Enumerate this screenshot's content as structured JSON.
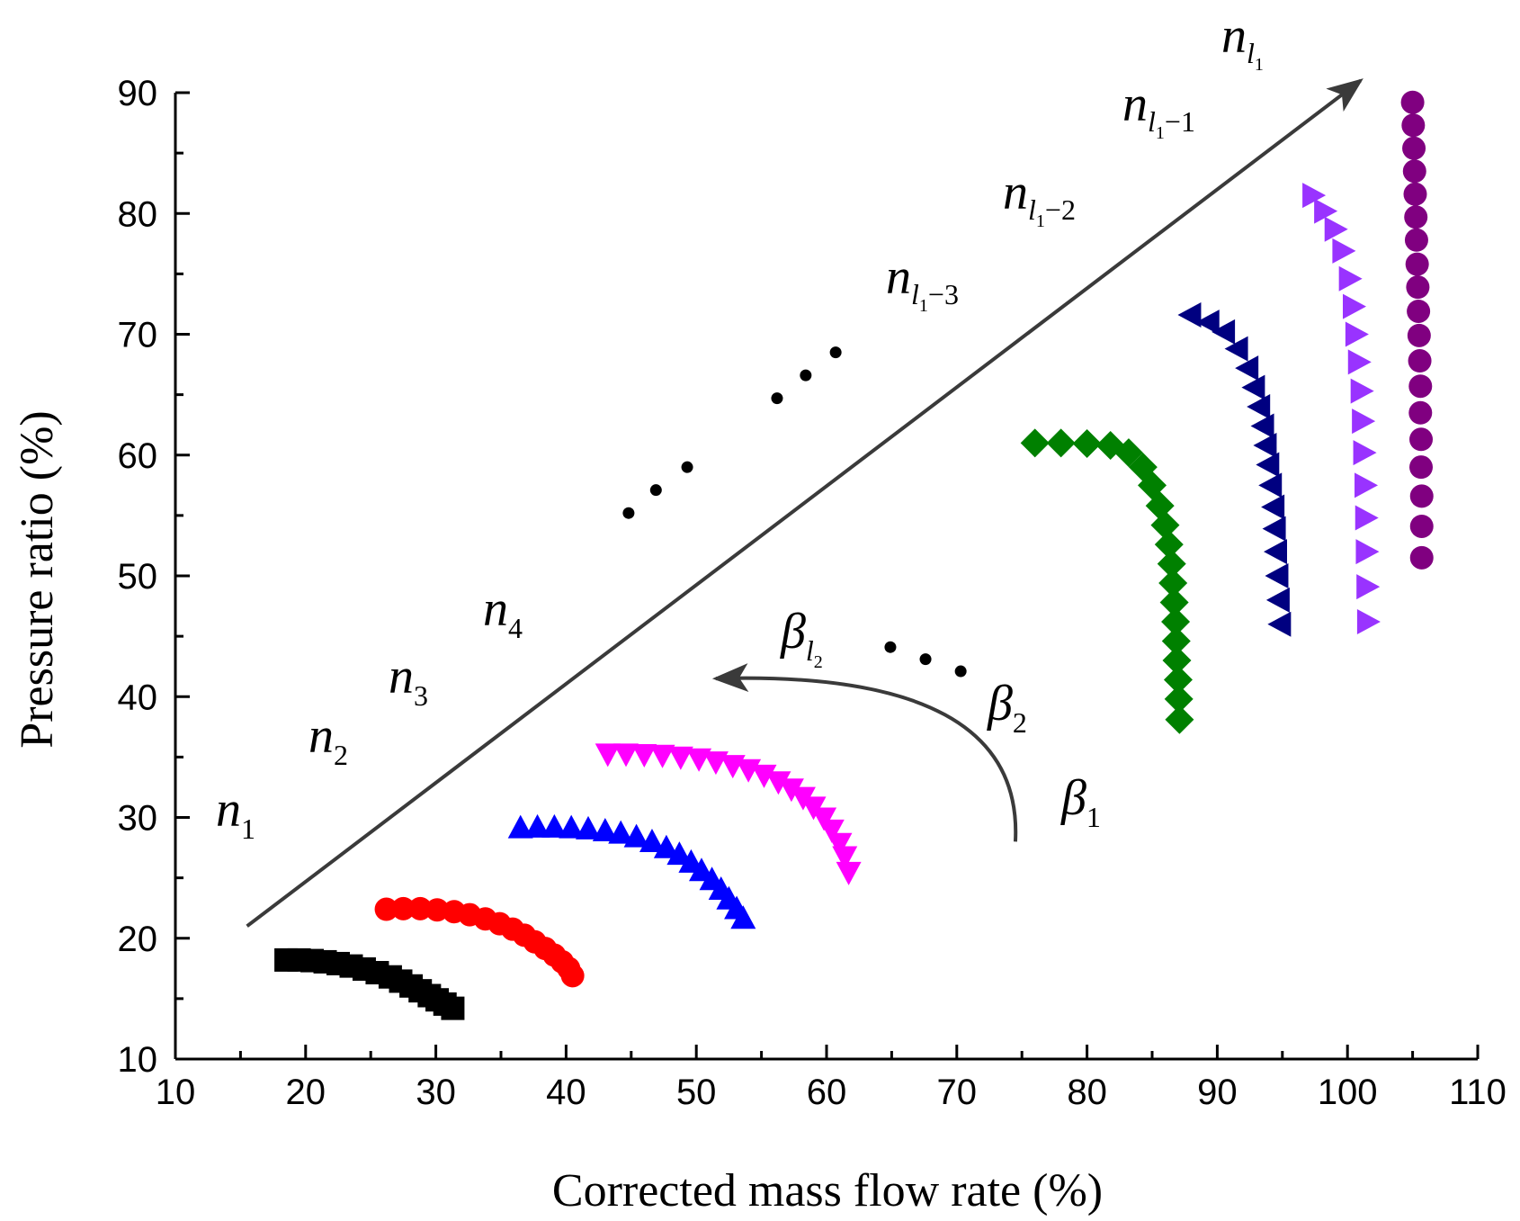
{
  "chart_data": {
    "type": "scatter",
    "title": "",
    "xlabel": "Corrected mass flow rate (%)",
    "ylabel": "Pressure ratio (%)",
    "xlim": [
      10,
      110
    ],
    "ylim": [
      10,
      90
    ],
    "xticks": [
      "10",
      "20",
      "30",
      "40",
      "50",
      "60",
      "70",
      "80",
      "90",
      "100",
      "110"
    ],
    "yticks": [
      "10",
      "20",
      "30",
      "40",
      "50",
      "60",
      "70",
      "80",
      "90"
    ],
    "grid": false,
    "series": [
      {
        "name": "n1",
        "marker": "square",
        "color": "#000000",
        "x": [
          18.5,
          19.5,
          20.5,
          21.5,
          22.5,
          23.5,
          24.5,
          25.5,
          26.5,
          27.3,
          28.1,
          28.8,
          29.5,
          30.1,
          30.7,
          31.3
        ],
        "y": [
          18.2,
          18.2,
          18.15,
          18.05,
          17.9,
          17.7,
          17.45,
          17.15,
          16.8,
          16.45,
          16.05,
          15.65,
          15.25,
          14.9,
          14.55,
          14.2
        ]
      },
      {
        "name": "n2",
        "marker": "circle",
        "color": "#ff0000",
        "x": [
          26.2,
          27.5,
          28.8,
          30.1,
          31.4,
          32.6,
          33.8,
          34.9,
          35.9,
          36.8,
          37.6,
          38.4,
          39.1,
          39.7,
          40.2,
          40.5
        ],
        "y": [
          22.4,
          22.45,
          22.45,
          22.35,
          22.2,
          21.95,
          21.6,
          21.2,
          20.75,
          20.25,
          19.7,
          19.15,
          18.6,
          18.05,
          17.5,
          16.9
        ]
      },
      {
        "name": "n3",
        "marker": "triangle-up",
        "color": "#0000ff",
        "x": [
          36.5,
          37.8,
          39.1,
          40.4,
          41.7,
          43.0,
          44.2,
          45.4,
          46.6,
          47.7,
          48.7,
          49.6,
          50.4,
          51.2,
          51.9,
          52.5,
          53.1,
          53.6
        ],
        "y": [
          29.1,
          29.15,
          29.15,
          29.1,
          29.0,
          28.85,
          28.65,
          28.35,
          27.95,
          27.45,
          26.9,
          26.25,
          25.55,
          24.8,
          24.0,
          23.2,
          22.4,
          21.6
        ]
      },
      {
        "name": "n4",
        "marker": "triangle-down",
        "color": "#ff00ff",
        "x": [
          43.2,
          44.6,
          46.0,
          47.4,
          48.8,
          50.2,
          51.5,
          52.8,
          54.0,
          55.2,
          56.3,
          57.3,
          58.2,
          59.0,
          59.8,
          60.4,
          61.0,
          61.4,
          61.7
        ],
        "y": [
          35.3,
          35.3,
          35.25,
          35.2,
          35.05,
          34.9,
          34.65,
          34.35,
          34.0,
          33.55,
          33.0,
          32.4,
          31.7,
          30.9,
          30.0,
          29.0,
          27.9,
          26.8,
          25.5
        ]
      },
      {
        "name": "n l1-3",
        "marker": "diamond",
        "color": "#008000",
        "x": [
          76.0,
          78.0,
          80.0,
          81.8,
          83.2,
          84.3,
          85.0,
          85.6,
          86.0,
          86.3,
          86.5,
          86.6,
          86.7,
          86.8,
          86.85,
          86.9,
          87.0,
          87.05,
          87.1
        ],
        "y": [
          61.0,
          61.0,
          60.95,
          60.8,
          60.2,
          59.0,
          57.5,
          55.8,
          54.2,
          52.6,
          51.0,
          49.4,
          47.8,
          46.2,
          44.6,
          43.0,
          41.4,
          39.8,
          38.1
        ]
      },
      {
        "name": "n l1-2",
        "marker": "triangle-left",
        "color": "#000080",
        "x": [
          88.0,
          89.4,
          90.6,
          91.6,
          92.4,
          92.9,
          93.3,
          93.6,
          93.8,
          94.0,
          94.2,
          94.4,
          94.5,
          94.6,
          94.7,
          94.8,
          94.9
        ],
        "y": [
          71.6,
          71.0,
          70.2,
          68.8,
          67.2,
          65.6,
          64.0,
          62.4,
          60.8,
          59.2,
          57.5,
          55.7,
          53.9,
          52.0,
          50.0,
          48.0,
          46.0
        ]
      },
      {
        "name": "n l1-1",
        "marker": "triangle-right",
        "color": "#9933ff",
        "x": [
          97.3,
          98.2,
          99.0,
          99.6,
          100.1,
          100.4,
          100.6,
          100.8,
          101.0,
          101.1,
          101.2,
          101.3,
          101.35,
          101.4,
          101.45,
          101.5
        ],
        "y": [
          81.5,
          80.2,
          78.7,
          76.9,
          74.6,
          72.3,
          70.0,
          67.7,
          65.3,
          62.8,
          60.2,
          57.5,
          54.8,
          52.0,
          49.1,
          46.2
        ]
      },
      {
        "name": "n l1",
        "marker": "circle",
        "color": "#800080",
        "x": [
          105.0,
          105.05,
          105.1,
          105.15,
          105.2,
          105.25,
          105.3,
          105.35,
          105.4,
          105.45,
          105.5,
          105.55,
          105.6,
          105.6,
          105.65,
          105.65,
          105.7,
          105.7,
          105.7
        ],
        "y": [
          89.2,
          87.3,
          85.4,
          83.5,
          81.6,
          79.7,
          77.8,
          75.8,
          73.9,
          71.9,
          69.9,
          67.8,
          65.7,
          63.5,
          61.3,
          59.0,
          56.6,
          54.1,
          51.5
        ]
      }
    ],
    "annotations": {
      "speed_arrow": {
        "from": [
          15.5,
          21.0
        ],
        "to": [
          101.0,
          91.0
        ]
      },
      "beta_arrow": {
        "from": [
          74.5,
          28.0
        ],
        "to": [
          51.5,
          41.5
        ]
      },
      "speed_ellipsis_points": [
        [
          44.8,
          55.2
        ],
        [
          46.9,
          57.1
        ],
        [
          49.3,
          59.0
        ],
        [
          56.2,
          64.7
        ],
        [
          58.4,
          66.6
        ],
        [
          60.7,
          68.5
        ]
      ],
      "beta_ellipsis_points": [
        [
          64.9,
          44.1
        ],
        [
          67.6,
          43.1
        ],
        [
          70.3,
          42.1
        ]
      ]
    }
  },
  "labels": {
    "n1": {
      "base": "n",
      "sub": "1"
    },
    "n2": {
      "base": "n",
      "sub": "2"
    },
    "n3": {
      "base": "n",
      "sub": "3"
    },
    "n4": {
      "base": "n",
      "sub": "4"
    },
    "nl13": {
      "base": "n",
      "sub": "l",
      "subsub": "1",
      "suffix": "−3"
    },
    "nl12": {
      "base": "n",
      "sub": "l",
      "subsub": "1",
      "suffix": "−2"
    },
    "nl11": {
      "base": "n",
      "sub": "l",
      "subsub": "1",
      "suffix": "−1"
    },
    "nl1": {
      "base": "n",
      "sub": "l",
      "subsub": "1"
    },
    "beta1": {
      "base": "β",
      "sub": "1"
    },
    "beta2": {
      "base": "β",
      "sub": "2"
    },
    "betal2": {
      "base": "β",
      "sub": "l",
      "subsub": "2"
    }
  }
}
